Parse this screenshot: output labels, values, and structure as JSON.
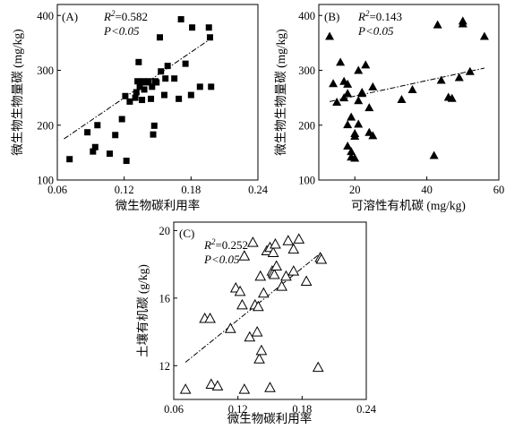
{
  "chart_data": [
    {
      "type": "scatter",
      "panel_label": "(A)",
      "r2_prefix": "R",
      "r2_sup": "2",
      "r2_value": "=0.582",
      "p_text": "P<0.05",
      "xlabel": "微生物碳利用率",
      "ylabel": "微生物生物量碳 (mg/kg)",
      "xlim": [
        0.06,
        0.24
      ],
      "ylim": [
        100,
        420
      ],
      "x_ticks": [
        "0.06",
        "0.12",
        "0.18",
        "0.24"
      ],
      "y_ticks": [
        "100",
        "200",
        "300",
        "400"
      ],
      "marker": "filled-square",
      "x": [
        0.071,
        0.087,
        0.094,
        0.096,
        0.092,
        0.107,
        0.112,
        0.118,
        0.121,
        0.122,
        0.125,
        0.13,
        0.131,
        0.132,
        0.133,
        0.134,
        0.136,
        0.137,
        0.138,
        0.139,
        0.14,
        0.142,
        0.144,
        0.145,
        0.146,
        0.147,
        0.148,
        0.149,
        0.152,
        0.153,
        0.156,
        0.157,
        0.159,
        0.165,
        0.169,
        0.171,
        0.175,
        0.18,
        0.181,
        0.188,
        0.196,
        0.197,
        0.198
      ],
      "y": [
        138,
        187,
        160,
        200,
        152,
        148,
        182,
        211,
        253,
        135,
        243,
        250,
        260,
        280,
        315,
        270,
        246,
        280,
        265,
        279,
        278,
        280,
        248,
        270,
        183,
        199,
        280,
        278,
        360,
        298,
        255,
        285,
        308,
        285,
        248,
        393,
        312,
        255,
        378,
        270,
        378,
        360,
        270
      ],
      "trend": [
        [
          0.066,
          175
        ],
        [
          0.198,
          358
        ]
      ]
    },
    {
      "type": "scatter",
      "panel_label": "(B)",
      "r2_prefix": "R",
      "r2_sup": "2",
      "r2_value": "=0.143",
      "p_text": "P<0.05",
      "xlabel": "可溶性有机碳 (mg/kg)",
      "ylabel": "微生物生物量碳 (mg/kg)",
      "xlim": [
        10,
        60
      ],
      "ylim": [
        100,
        420
      ],
      "x_ticks": [
        "20",
        "40",
        "60"
      ],
      "y_ticks": [
        "100",
        "200",
        "300",
        "400"
      ],
      "marker": "filled-triangle",
      "x": [
        13,
        14,
        15,
        16,
        17,
        17,
        18,
        18,
        18,
        19,
        19,
        19,
        20,
        20,
        21,
        21,
        22,
        23,
        24,
        24,
        25,
        25,
        33,
        36,
        42,
        43,
        44,
        46,
        47,
        49,
        50,
        50,
        52,
        56,
        18,
        20,
        21,
        22
      ],
      "y": [
        362,
        276,
        242,
        315,
        280,
        250,
        275,
        201,
        162,
        142,
        152,
        215,
        140,
        185,
        245,
        202,
        258,
        310,
        232,
        187,
        270,
        181,
        247,
        265,
        145,
        383,
        282,
        251,
        249,
        287,
        385,
        390,
        298,
        362,
        258,
        180,
        300,
        260
      ],
      "trend": [
        [
          13,
          243
        ],
        [
          56,
          304
        ]
      ]
    },
    {
      "type": "scatter",
      "panel_label": "(C)",
      "r2_prefix": "R",
      "r2_sup": "2",
      "r2_value": "=0.252",
      "p_text": "P<0.05",
      "xlabel": "微生物碳利用率",
      "ylabel": "土壤有机碳 (g/kg)",
      "xlim": [
        0.06,
        0.24
      ],
      "ylim": [
        10,
        20.5
      ],
      "x_ticks": [
        "0.06",
        "0.12",
        "0.18",
        "0.24"
      ],
      "y_ticks": [
        "12",
        "16",
        "20"
      ],
      "marker": "open-triangle",
      "x": [
        0.071,
        0.089,
        0.094,
        0.095,
        0.101,
        0.113,
        0.118,
        0.122,
        0.124,
        0.126,
        0.126,
        0.131,
        0.134,
        0.136,
        0.138,
        0.139,
        0.14,
        0.141,
        0.142,
        0.144,
        0.147,
        0.15,
        0.15,
        0.152,
        0.153,
        0.153,
        0.154,
        0.155,
        0.156,
        0.161,
        0.165,
        0.167,
        0.172,
        0.172,
        0.177,
        0.184,
        0.195,
        0.197,
        0.198
      ],
      "y": [
        10.6,
        14.8,
        14.8,
        10.9,
        10.8,
        14.2,
        16.6,
        16.4,
        15.6,
        10.6,
        18.5,
        13.7,
        19.3,
        15.6,
        14.0,
        15.5,
        12.4,
        17.3,
        12.9,
        16.3,
        18.8,
        10.7,
        19.0,
        17.6,
        17.5,
        18.7,
        17.4,
        19.2,
        17.9,
        16.7,
        17.3,
        19.4,
        17.6,
        18.9,
        19.5,
        17.0,
        11.9,
        18.4,
        18.3
      ],
      "trend": [
        [
          0.071,
          12.2
        ],
        [
          0.198,
          18.7
        ]
      ]
    }
  ]
}
